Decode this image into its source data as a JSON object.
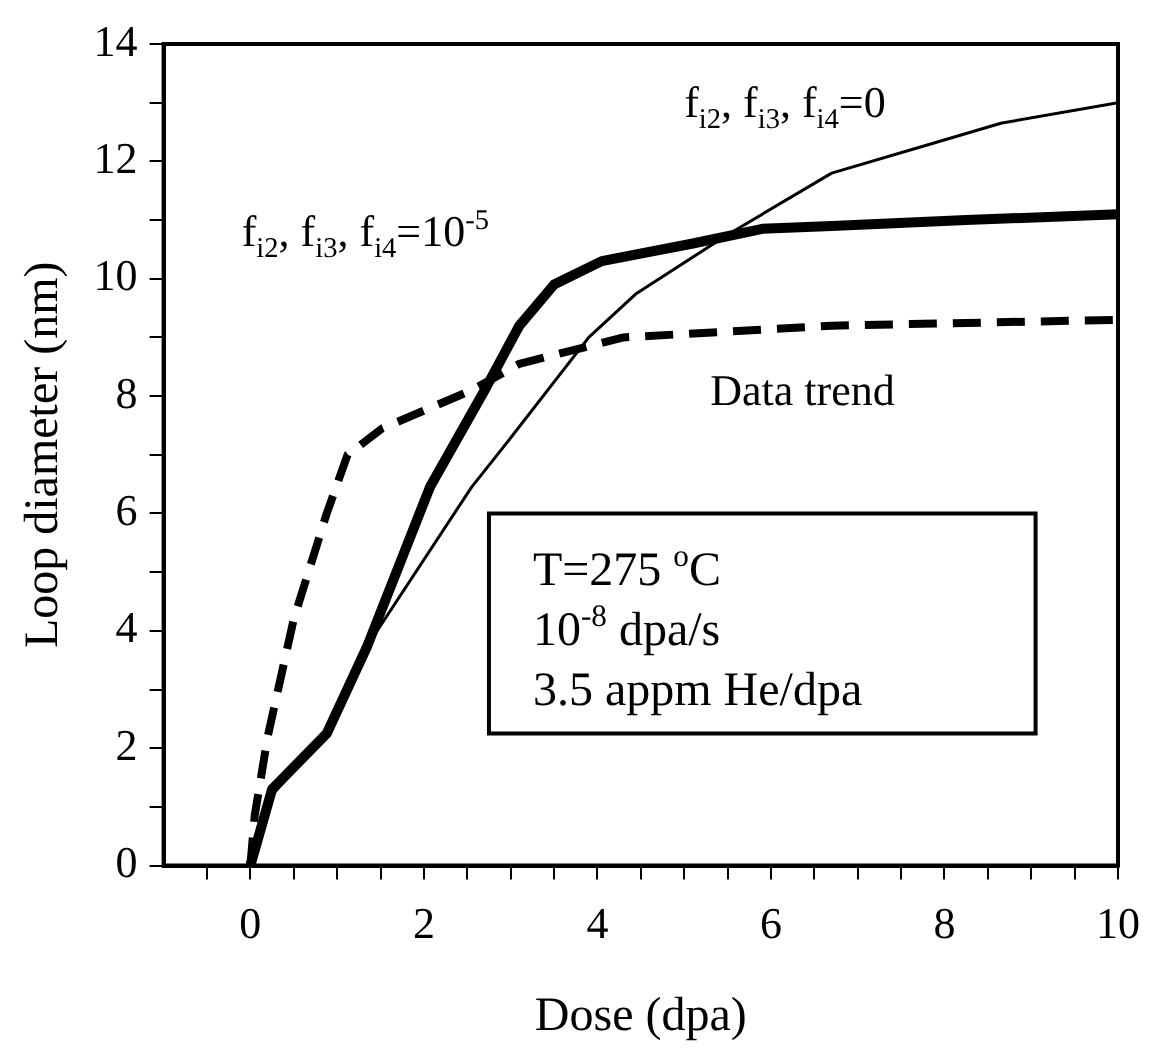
{
  "chart_data": {
    "type": "line",
    "xlabel": "Dose (dpa)",
    "ylabel": "Loop diameter (nm)",
    "xlim": [
      -1,
      10
    ],
    "xticks": [
      {
        "value": -0.5,
        "label": null
      },
      0,
      {
        "value": 0.5,
        "label": null
      },
      {
        "value": 1,
        "label": null
      },
      {
        "value": 1.5,
        "label": null
      },
      2,
      {
        "value": 2.5,
        "label": null
      },
      {
        "value": 3,
        "label": null
      },
      {
        "value": 3.5,
        "label": null
      },
      4,
      {
        "value": 4.5,
        "label": null
      },
      {
        "value": 5,
        "label": null
      },
      {
        "value": 5.5,
        "label": null
      },
      6,
      {
        "value": 6.5,
        "label": null
      },
      {
        "value": 7,
        "label": null
      },
      {
        "value": 7.5,
        "label": null
      },
      8,
      {
        "value": 8.5,
        "label": null
      },
      {
        "value": 9,
        "label": null
      },
      {
        "value": 9.5,
        "label": null
      },
      10
    ],
    "ylim": [
      0,
      14
    ],
    "yticks": [
      0,
      {
        "value": 1,
        "label": null
      },
      2,
      {
        "value": 3,
        "label": null
      },
      4,
      {
        "value": 5,
        "label": null
      },
      6,
      {
        "value": 7,
        "label": null
      },
      8,
      {
        "value": 9,
        "label": null
      },
      10,
      {
        "value": 11,
        "label": null
      },
      12,
      {
        "value": 13,
        "label": null
      },
      14
    ],
    "grid": false,
    "legend": false,
    "marker": "none",
    "series": [
      {
        "name": "f$_{i2}$, f$_{i3}$, f$_{i4}$=10$^{-5}$",
        "color": "#000000",
        "line_style": "solid",
        "x": [
          0,
          0.25,
          0.88,
          1.35,
          2.07,
          2.7,
          3.1,
          3.5,
          4.05,
          5.1,
          5.9,
          6.7,
          8.25,
          10
        ],
        "values": [
          0,
          1.3,
          2.25,
          3.75,
          6.45,
          8.1,
          9.2,
          9.9,
          10.3,
          10.6,
          10.85,
          10.9,
          11.0,
          11.1
        ]
      },
      {
        "name": "f$_{i2}$, f$_{i3}$, f$_{i4}$=0",
        "color": "#000000",
        "line_style": "solid",
        "x": [
          0,
          0.25,
          0.9,
          1.35,
          2.55,
          2.9,
          3.9,
          4.45,
          5.5,
          6.7,
          7.85,
          8.65,
          10
        ],
        "values": [
          0,
          1.2,
          2.3,
          3.75,
          6.45,
          7.1,
          9.0,
          9.75,
          10.75,
          11.8,
          12.3,
          12.65,
          13.0
        ]
      },
      {
        "name": "Data trend",
        "color": "#000000",
        "line_style": "dashed",
        "x": [
          0,
          0.05,
          0.2,
          0.5,
          0.88,
          1.12,
          1.52,
          2.55,
          3.1,
          4.3,
          6.7,
          10
        ],
        "values": [
          0,
          0.85,
          2.2,
          4.2,
          6.0,
          7.0,
          7.45,
          8.1,
          8.55,
          9.0,
          9.2,
          9.3
        ]
      }
    ],
    "annotations": [
      "T=275 $^{o}$C",
      "10$^{-8}$ dpa/s",
      "3.5 appm He/dpa"
    ]
  }
}
